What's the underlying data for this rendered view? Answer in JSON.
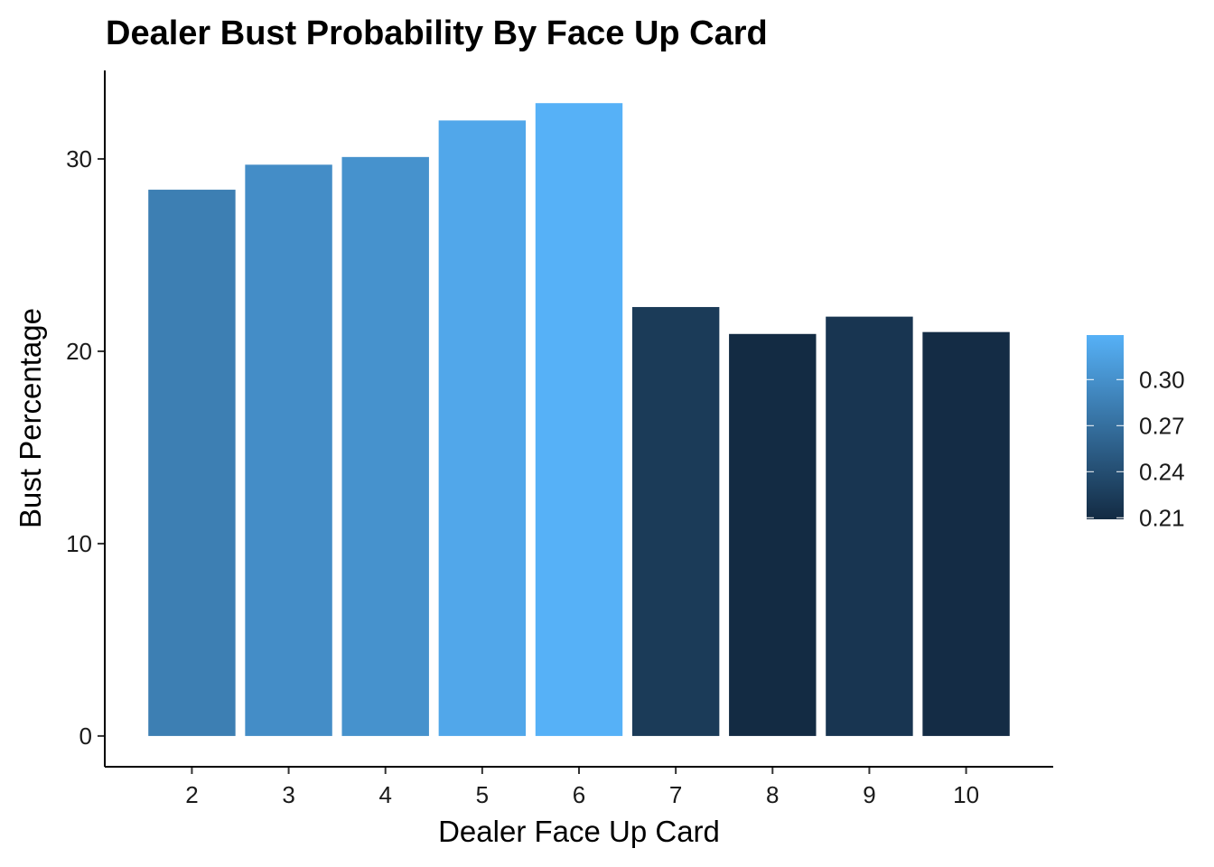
{
  "chart_data": {
    "type": "bar",
    "title": "Dealer Bust Probability By Face Up Card",
    "xlabel": "Dealer Face Up Card",
    "ylabel": "Bust Percentage",
    "categories": [
      "2",
      "3",
      "4",
      "5",
      "6",
      "7",
      "8",
      "9",
      "10"
    ],
    "values": [
      28.4,
      29.7,
      30.1,
      32.0,
      32.9,
      22.3,
      20.9,
      21.8,
      21.0
    ],
    "fill_values": [
      0.284,
      0.297,
      0.301,
      0.32,
      0.329,
      0.223,
      0.209,
      0.218,
      0.21
    ],
    "ylim": [
      -1.6,
      34.6
    ],
    "yticks": [
      0,
      10,
      20,
      30
    ],
    "grid": false,
    "legend": {
      "position": "right",
      "type": "colorbar",
      "range": [
        0.209,
        0.329
      ],
      "ticks": [
        0.21,
        0.24,
        0.27,
        0.3
      ],
      "tick_labels": [
        "0.21",
        "0.24",
        "0.27",
        "0.30"
      ],
      "color_low": "#132B43",
      "color_high": "#56B1F7"
    }
  }
}
